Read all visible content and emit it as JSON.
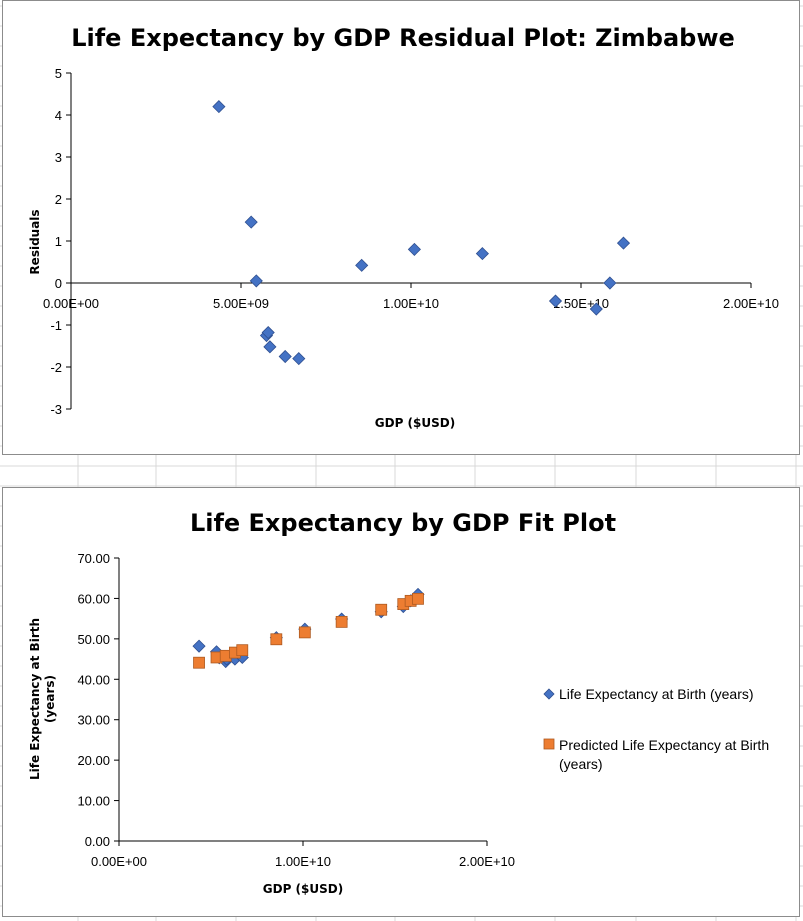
{
  "colors": {
    "series_blue": "#4472c4",
    "series_blue_edge": "#2f4f8f",
    "series_orange": "#ed7d31",
    "series_orange_edge": "#ae5a21",
    "axis": "#000000",
    "sheet_grid": "#d9d9d9"
  },
  "chart_data": [
    {
      "type": "scatter",
      "title": "Life Expectancy by GDP Residual Plot: Zimbabwe",
      "xlabel": "GDP ($USD)",
      "ylabel": "Residuals",
      "xlim": [
        0,
        20000000000
      ],
      "ylim": [
        -3,
        5
      ],
      "x_ticks": [
        {
          "value": 0,
          "label": "0.00E+00"
        },
        {
          "value": 5000000000,
          "label": "5.00E+09"
        },
        {
          "value": 10000000000,
          "label": "1.00E+10"
        },
        {
          "value": 15000000000,
          "label": "1.50E+10"
        },
        {
          "value": 20000000000,
          "label": "2.00E+10"
        }
      ],
      "y_ticks": [
        {
          "value": 5,
          "label": "5"
        },
        {
          "value": 4,
          "label": "4"
        },
        {
          "value": 3,
          "label": "3"
        },
        {
          "value": 2,
          "label": "2"
        },
        {
          "value": 1,
          "label": "1"
        },
        {
          "value": 0,
          "label": "0"
        },
        {
          "value": -1,
          "label": "-1"
        },
        {
          "value": -2,
          "label": "-2"
        },
        {
          "value": -3,
          "label": "-3"
        }
      ],
      "grid": false,
      "legend": "none",
      "series": [
        {
          "marker": "diamond",
          "points": [
            {
              "x": 4350000000,
              "y": 4.2
            },
            {
              "x": 5300000000,
              "y": 1.45
            },
            {
              "x": 5450000000,
              "y": 0.05
            },
            {
              "x": 5750000000,
              "y": -1.25
            },
            {
              "x": 5800000000,
              "y": -1.18
            },
            {
              "x": 5850000000,
              "y": -1.52
            },
            {
              "x": 6300000000,
              "y": -1.75
            },
            {
              "x": 6700000000,
              "y": -1.8
            },
            {
              "x": 8550000000,
              "y": 0.42
            },
            {
              "x": 10100000000,
              "y": 0.8
            },
            {
              "x": 12100000000,
              "y": 0.7
            },
            {
              "x": 14250000000,
              "y": -0.43
            },
            {
              "x": 15450000000,
              "y": -0.62
            },
            {
              "x": 15850000000,
              "y": 0.0
            },
            {
              "x": 16250000000,
              "y": 0.95
            }
          ]
        }
      ]
    },
    {
      "type": "scatter",
      "title": "Life Expectancy by GDP Fit Plot",
      "xlabel": "GDP ($USD)",
      "ylabel_lines": [
        "Life Expectancy at Birth",
        "(years)"
      ],
      "xlim": [
        0,
        20000000000
      ],
      "ylim": [
        0,
        70
      ],
      "x_ticks": [
        {
          "value": 0,
          "label": "0.00E+00"
        },
        {
          "value": 10000000000,
          "label": "1.00E+10"
        },
        {
          "value": 20000000000,
          "label": "2.00E+10"
        }
      ],
      "y_ticks": [
        {
          "value": 70,
          "label": "70.00"
        },
        {
          "value": 60,
          "label": "60.00"
        },
        {
          "value": 50,
          "label": "50.00"
        },
        {
          "value": 40,
          "label": "40.00"
        },
        {
          "value": 30,
          "label": "30.00"
        },
        {
          "value": 20,
          "label": "20.00"
        },
        {
          "value": 10,
          "label": "10.00"
        },
        {
          "value": 0,
          "label": "0.00"
        }
      ],
      "grid": false,
      "legend": "right",
      "series": [
        {
          "name": "Life Expectancy at Birth (years)",
          "legend_lines": [
            "Life Expectancy at Birth (years)"
          ],
          "marker": "diamond",
          "points": [
            {
              "x": 4350000000,
              "y": 48.2
            },
            {
              "x": 5300000000,
              "y": 46.8
            },
            {
              "x": 5450000000,
              "y": 45.3
            },
            {
              "x": 5800000000,
              "y": 44.4
            },
            {
              "x": 5850000000,
              "y": 45.0
            },
            {
              "x": 6300000000,
              "y": 45.0
            },
            {
              "x": 6700000000,
              "y": 45.4
            },
            {
              "x": 8550000000,
              "y": 50.3
            },
            {
              "x": 10100000000,
              "y": 52.4
            },
            {
              "x": 12100000000,
              "y": 54.9
            },
            {
              "x": 14250000000,
              "y": 56.7
            },
            {
              "x": 15450000000,
              "y": 58.0
            },
            {
              "x": 15850000000,
              "y": 59.4
            },
            {
              "x": 16250000000,
              "y": 61.0
            }
          ]
        },
        {
          "name": "Predicted Life Expectancy at Birth (years)",
          "legend_lines": [
            "Predicted Life Expectancy at Birth",
            "(years)"
          ],
          "marker": "square",
          "points": [
            {
              "x": 4350000000,
              "y": 44.1
            },
            {
              "x": 5300000000,
              "y": 45.4
            },
            {
              "x": 5800000000,
              "y": 45.8
            },
            {
              "x": 6300000000,
              "y": 46.6
            },
            {
              "x": 6700000000,
              "y": 47.2
            },
            {
              "x": 8550000000,
              "y": 49.9
            },
            {
              "x": 10100000000,
              "y": 51.6
            },
            {
              "x": 12100000000,
              "y": 54.2
            },
            {
              "x": 14250000000,
              "y": 57.2
            },
            {
              "x": 15450000000,
              "y": 58.6
            },
            {
              "x": 15850000000,
              "y": 59.4
            },
            {
              "x": 16250000000,
              "y": 59.9
            }
          ]
        }
      ]
    }
  ]
}
